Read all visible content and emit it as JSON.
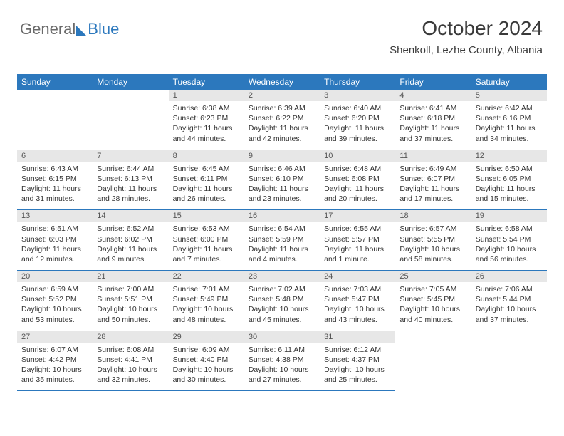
{
  "logo": {
    "part1": "General",
    "part2": "Blue"
  },
  "header": {
    "month_title": "October 2024",
    "location": "Shenkoll, Lezhe County, Albania"
  },
  "colors": {
    "brand_blue": "#2c78bd",
    "logo_gray": "#6a6a6a",
    "header_row_bg": "#2c78bd",
    "header_row_fg": "#ffffff",
    "daynum_bg": "#e7e7e7",
    "cell_border": "#2c78bd",
    "text": "#333333"
  },
  "weekdays": [
    "Sunday",
    "Monday",
    "Tuesday",
    "Wednesday",
    "Thursday",
    "Friday",
    "Saturday"
  ],
  "weeks": [
    [
      null,
      null,
      {
        "n": "1",
        "sunrise": "Sunrise: 6:38 AM",
        "sunset": "Sunset: 6:23 PM",
        "daylight": "Daylight: 11 hours and 44 minutes."
      },
      {
        "n": "2",
        "sunrise": "Sunrise: 6:39 AM",
        "sunset": "Sunset: 6:22 PM",
        "daylight": "Daylight: 11 hours and 42 minutes."
      },
      {
        "n": "3",
        "sunrise": "Sunrise: 6:40 AM",
        "sunset": "Sunset: 6:20 PM",
        "daylight": "Daylight: 11 hours and 39 minutes."
      },
      {
        "n": "4",
        "sunrise": "Sunrise: 6:41 AM",
        "sunset": "Sunset: 6:18 PM",
        "daylight": "Daylight: 11 hours and 37 minutes."
      },
      {
        "n": "5",
        "sunrise": "Sunrise: 6:42 AM",
        "sunset": "Sunset: 6:16 PM",
        "daylight": "Daylight: 11 hours and 34 minutes."
      }
    ],
    [
      {
        "n": "6",
        "sunrise": "Sunrise: 6:43 AM",
        "sunset": "Sunset: 6:15 PM",
        "daylight": "Daylight: 11 hours and 31 minutes."
      },
      {
        "n": "7",
        "sunrise": "Sunrise: 6:44 AM",
        "sunset": "Sunset: 6:13 PM",
        "daylight": "Daylight: 11 hours and 28 minutes."
      },
      {
        "n": "8",
        "sunrise": "Sunrise: 6:45 AM",
        "sunset": "Sunset: 6:11 PM",
        "daylight": "Daylight: 11 hours and 26 minutes."
      },
      {
        "n": "9",
        "sunrise": "Sunrise: 6:46 AM",
        "sunset": "Sunset: 6:10 PM",
        "daylight": "Daylight: 11 hours and 23 minutes."
      },
      {
        "n": "10",
        "sunrise": "Sunrise: 6:48 AM",
        "sunset": "Sunset: 6:08 PM",
        "daylight": "Daylight: 11 hours and 20 minutes."
      },
      {
        "n": "11",
        "sunrise": "Sunrise: 6:49 AM",
        "sunset": "Sunset: 6:07 PM",
        "daylight": "Daylight: 11 hours and 17 minutes."
      },
      {
        "n": "12",
        "sunrise": "Sunrise: 6:50 AM",
        "sunset": "Sunset: 6:05 PM",
        "daylight": "Daylight: 11 hours and 15 minutes."
      }
    ],
    [
      {
        "n": "13",
        "sunrise": "Sunrise: 6:51 AM",
        "sunset": "Sunset: 6:03 PM",
        "daylight": "Daylight: 11 hours and 12 minutes."
      },
      {
        "n": "14",
        "sunrise": "Sunrise: 6:52 AM",
        "sunset": "Sunset: 6:02 PM",
        "daylight": "Daylight: 11 hours and 9 minutes."
      },
      {
        "n": "15",
        "sunrise": "Sunrise: 6:53 AM",
        "sunset": "Sunset: 6:00 PM",
        "daylight": "Daylight: 11 hours and 7 minutes."
      },
      {
        "n": "16",
        "sunrise": "Sunrise: 6:54 AM",
        "sunset": "Sunset: 5:59 PM",
        "daylight": "Daylight: 11 hours and 4 minutes."
      },
      {
        "n": "17",
        "sunrise": "Sunrise: 6:55 AM",
        "sunset": "Sunset: 5:57 PM",
        "daylight": "Daylight: 11 hours and 1 minute."
      },
      {
        "n": "18",
        "sunrise": "Sunrise: 6:57 AM",
        "sunset": "Sunset: 5:55 PM",
        "daylight": "Daylight: 10 hours and 58 minutes."
      },
      {
        "n": "19",
        "sunrise": "Sunrise: 6:58 AM",
        "sunset": "Sunset: 5:54 PM",
        "daylight": "Daylight: 10 hours and 56 minutes."
      }
    ],
    [
      {
        "n": "20",
        "sunrise": "Sunrise: 6:59 AM",
        "sunset": "Sunset: 5:52 PM",
        "daylight": "Daylight: 10 hours and 53 minutes."
      },
      {
        "n": "21",
        "sunrise": "Sunrise: 7:00 AM",
        "sunset": "Sunset: 5:51 PM",
        "daylight": "Daylight: 10 hours and 50 minutes."
      },
      {
        "n": "22",
        "sunrise": "Sunrise: 7:01 AM",
        "sunset": "Sunset: 5:49 PM",
        "daylight": "Daylight: 10 hours and 48 minutes."
      },
      {
        "n": "23",
        "sunrise": "Sunrise: 7:02 AM",
        "sunset": "Sunset: 5:48 PM",
        "daylight": "Daylight: 10 hours and 45 minutes."
      },
      {
        "n": "24",
        "sunrise": "Sunrise: 7:03 AM",
        "sunset": "Sunset: 5:47 PM",
        "daylight": "Daylight: 10 hours and 43 minutes."
      },
      {
        "n": "25",
        "sunrise": "Sunrise: 7:05 AM",
        "sunset": "Sunset: 5:45 PM",
        "daylight": "Daylight: 10 hours and 40 minutes."
      },
      {
        "n": "26",
        "sunrise": "Sunrise: 7:06 AM",
        "sunset": "Sunset: 5:44 PM",
        "daylight": "Daylight: 10 hours and 37 minutes."
      }
    ],
    [
      {
        "n": "27",
        "sunrise": "Sunrise: 6:07 AM",
        "sunset": "Sunset: 4:42 PM",
        "daylight": "Daylight: 10 hours and 35 minutes."
      },
      {
        "n": "28",
        "sunrise": "Sunrise: 6:08 AM",
        "sunset": "Sunset: 4:41 PM",
        "daylight": "Daylight: 10 hours and 32 minutes."
      },
      {
        "n": "29",
        "sunrise": "Sunrise: 6:09 AM",
        "sunset": "Sunset: 4:40 PM",
        "daylight": "Daylight: 10 hours and 30 minutes."
      },
      {
        "n": "30",
        "sunrise": "Sunrise: 6:11 AM",
        "sunset": "Sunset: 4:38 PM",
        "daylight": "Daylight: 10 hours and 27 minutes."
      },
      {
        "n": "31",
        "sunrise": "Sunrise: 6:12 AM",
        "sunset": "Sunset: 4:37 PM",
        "daylight": "Daylight: 10 hours and 25 minutes."
      },
      null,
      null
    ]
  ]
}
